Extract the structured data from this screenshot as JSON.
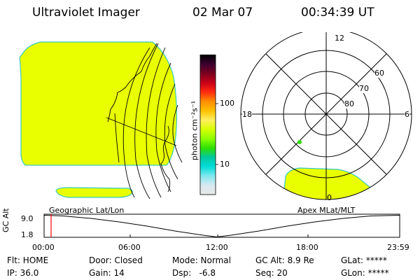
{
  "header": {
    "title": "Ultraviolet Imager",
    "date": "02 Mar 07",
    "time": "00:34:39 UT"
  },
  "colors": {
    "image_fill": "#e9ff00",
    "image_edge": "#35c9c0",
    "background": "#ffffff",
    "trace": "#000000",
    "time_marker": "#ff0000"
  },
  "colorbar": {
    "unit_label": "photon cm⁻²s⁻¹",
    "tick_labels": [
      "100",
      "10"
    ],
    "stops": [
      "#000000",
      "#3a0030",
      "#7a0020",
      "#c80018",
      "#ff2a10",
      "#ff8c00",
      "#ffc000",
      "#ffef60",
      "#d8ff00",
      "#8cff00",
      "#30e000",
      "#00c8a0",
      "#00dcd8",
      "#80e8f0",
      "#d8e8f0",
      "#e8e8e8"
    ]
  },
  "left_panel": {
    "caption": "Geographic Lat/Lon"
  },
  "polar_panel": {
    "caption": "Apex MLat/MLT",
    "mlt_labels": {
      "top": "12",
      "left": "18",
      "right": "6",
      "bottom": "0"
    },
    "lat_labels": [
      "60",
      "70",
      "80"
    ]
  },
  "timeline": {
    "axis_label": "GC Alt",
    "y_ticks": [
      "9.0",
      "1.8"
    ],
    "x_ticks": [
      "00:00",
      "06:00",
      "12:00",
      "18:00",
      "23:59"
    ],
    "marker_time": "00:34:39"
  },
  "status": {
    "flt": "Flt: HOME",
    "ip": "IP: 36.0",
    "door": "Door: Closed",
    "gain": "Gain: 14",
    "mode": "Mode: Normal",
    "dsp": "Dsp:   -6.8",
    "gc_alt": "GC Alt: 8.9 Re",
    "seq": "Seq: 20",
    "glat": "GLat: *****",
    "glon": "GLon: *****"
  }
}
